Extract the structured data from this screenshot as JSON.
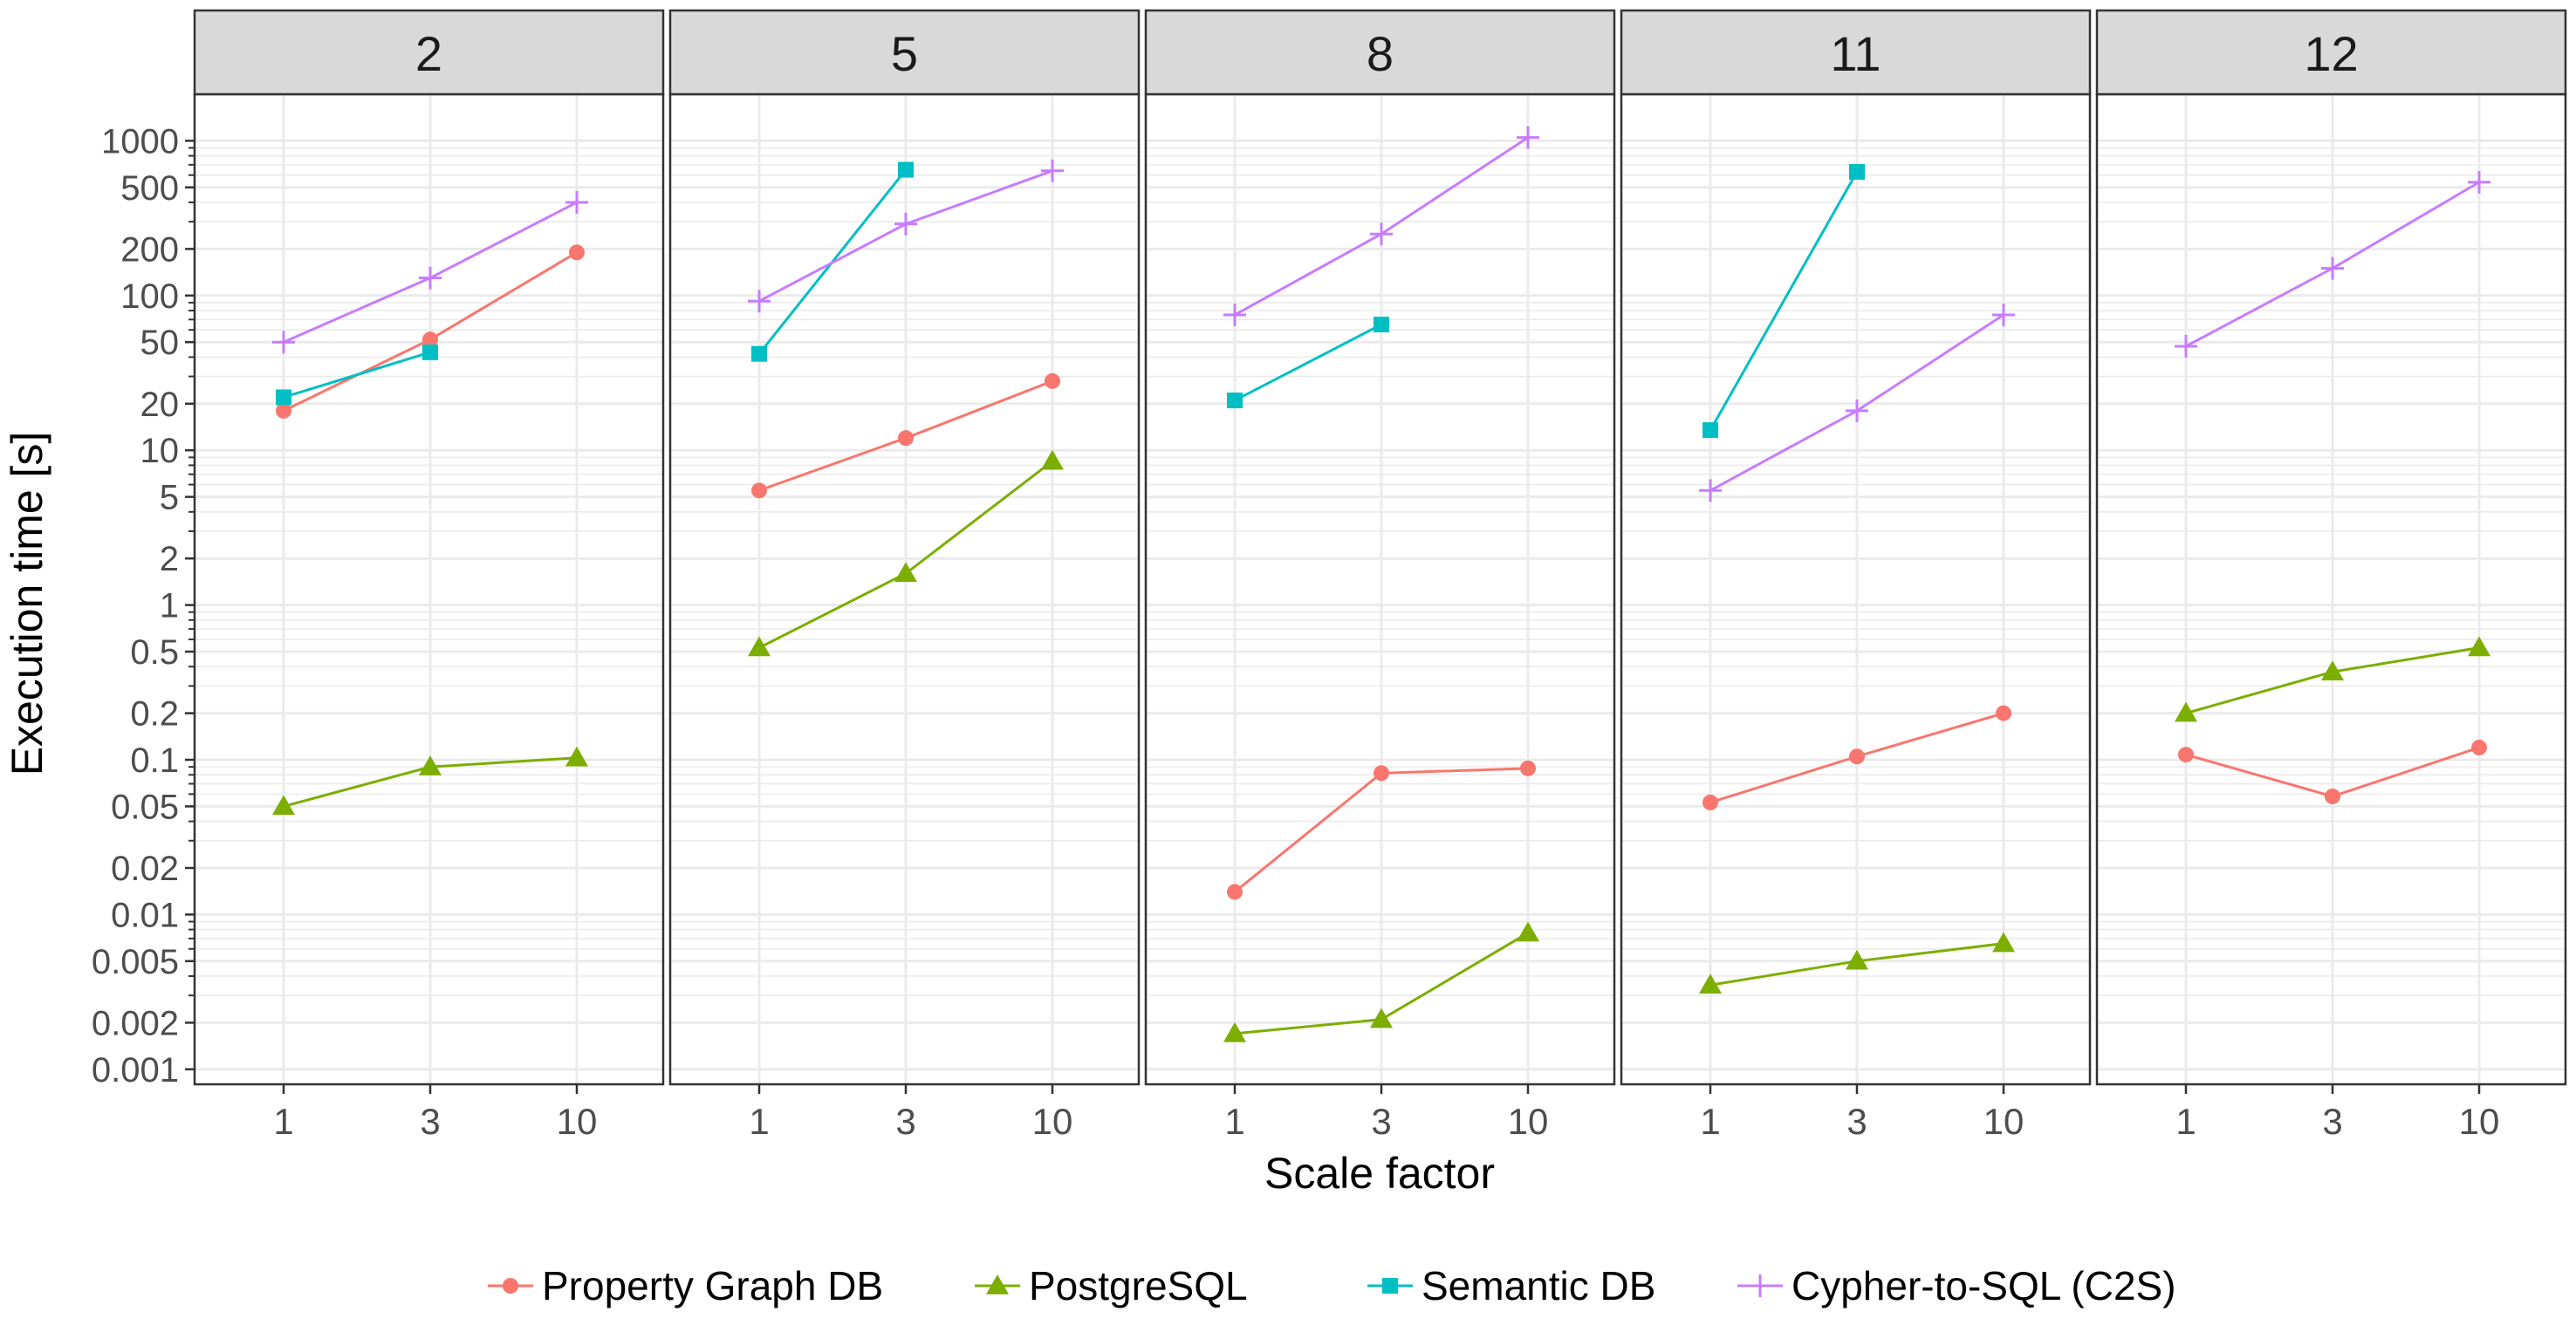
{
  "chart_data": {
    "type": "line",
    "title": "",
    "xlabel": "Scale factor",
    "ylabel": "Execution time [s]",
    "y_scale": "log10",
    "ylim": [
      0.0008,
      2000
    ],
    "grid": true,
    "legend_position": "bottom",
    "x": [
      1,
      3,
      10
    ],
    "x_tick_labels": [
      "1",
      "3",
      "10"
    ],
    "y_tick_labels": [
      "1000",
      "500",
      "200",
      "100",
      "50",
      "20",
      "10",
      "5",
      "2",
      "1",
      "0.5",
      "0.2",
      "0.1",
      "0.05",
      "0.02",
      "0.01",
      "0.005",
      "0.002",
      "0.001"
    ],
    "y_tick_values": [
      1000,
      500,
      200,
      100,
      50,
      20,
      10,
      5,
      2,
      1,
      0.5,
      0.2,
      0.1,
      0.05,
      0.02,
      0.01,
      0.005,
      0.002,
      0.001
    ],
    "legend": [
      {
        "name": "Property Graph DB",
        "color": "#F8766D",
        "marker": "circle"
      },
      {
        "name": "PostgreSQL",
        "color": "#7CAE00",
        "marker": "triangle"
      },
      {
        "name": "Semantic DB",
        "color": "#00BFC4",
        "marker": "square"
      },
      {
        "name": "Cypher-to-SQL (C2S)",
        "color": "#C77CFF",
        "marker": "plus"
      }
    ],
    "panels": [
      {
        "label": "2",
        "series": [
          {
            "name": "Property Graph DB",
            "values": [
              18,
              52,
              190
            ]
          },
          {
            "name": "PostgreSQL",
            "values": [
              0.05,
              0.09,
              0.103
            ]
          },
          {
            "name": "Semantic DB",
            "values": [
              22,
              43,
              null
            ]
          },
          {
            "name": "Cypher-to-SQL (C2S)",
            "values": [
              50,
              130,
              400
            ]
          }
        ]
      },
      {
        "label": "5",
        "series": [
          {
            "name": "Property Graph DB",
            "values": [
              5.5,
              12,
              28
            ]
          },
          {
            "name": "PostgreSQL",
            "values": [
              0.53,
              1.6,
              8.5
            ]
          },
          {
            "name": "Semantic DB",
            "values": [
              42,
              650,
              null
            ]
          },
          {
            "name": "Cypher-to-SQL (C2S)",
            "values": [
              92,
              290,
              640
            ]
          }
        ]
      },
      {
        "label": "8",
        "series": [
          {
            "name": "Property Graph DB",
            "values": [
              0.014,
              0.082,
              0.088
            ]
          },
          {
            "name": "PostgreSQL",
            "values": [
              0.0017,
              0.0021,
              0.0076
            ]
          },
          {
            "name": "Semantic DB",
            "values": [
              21,
              65,
              null
            ]
          },
          {
            "name": "Cypher-to-SQL (C2S)",
            "values": [
              75,
              250,
              1050
            ]
          }
        ]
      },
      {
        "label": "11",
        "series": [
          {
            "name": "Property Graph DB",
            "values": [
              0.053,
              0.105,
              0.2
            ]
          },
          {
            "name": "PostgreSQL",
            "values": [
              0.0035,
              0.005,
              0.0065
            ]
          },
          {
            "name": "Semantic DB",
            "values": [
              13.5,
              630,
              null
            ]
          },
          {
            "name": "Cypher-to-SQL (C2S)",
            "values": [
              5.5,
              18,
              75
            ]
          }
        ]
      },
      {
        "label": "12",
        "series": [
          {
            "name": "Property Graph DB",
            "values": [
              0.108,
              0.058,
              0.12
            ]
          },
          {
            "name": "PostgreSQL",
            "values": [
              0.2,
              0.37,
              0.53
            ]
          },
          {
            "name": "Semantic DB",
            "values": [
              null,
              null,
              null
            ]
          },
          {
            "name": "Cypher-to-SQL (C2S)",
            "values": [
              47,
              150,
              540
            ]
          }
        ]
      }
    ]
  }
}
